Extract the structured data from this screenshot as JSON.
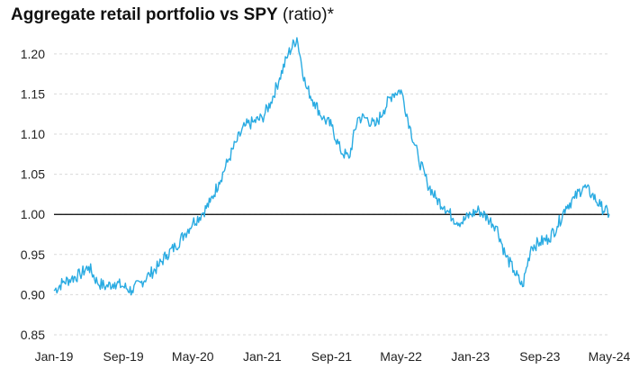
{
  "chart_data": {
    "type": "line",
    "title_bold": "Aggregate retail portfolio vs SPY",
    "title_suffix": " (ratio)*",
    "xlabel": "",
    "ylabel": "",
    "x_tick_labels": [
      "Jan-19",
      "Sep-19",
      "May-20",
      "Jan-21",
      "Sep-21",
      "May-22",
      "Jan-23",
      "Sep-23",
      "May-24"
    ],
    "y_tick_labels": [
      "0.85",
      "0.90",
      "0.95",
      "1.00",
      "1.05",
      "1.10",
      "1.15",
      "1.20"
    ],
    "y_ticks": [
      0.85,
      0.9,
      0.95,
      1.0,
      1.05,
      1.1,
      1.15,
      1.2
    ],
    "ylim": [
      0.85,
      1.22
    ],
    "x_range_months": [
      0,
      64
    ],
    "grid": true,
    "reference_line": 1.0,
    "series": [
      {
        "name": "Aggregate retail portfolio vs SPY",
        "color": "#29abe2",
        "x_months": [
          0,
          1,
          2,
          3,
          4,
          5,
          6,
          7,
          8,
          9,
          10,
          11,
          12,
          13,
          14,
          15,
          16,
          17,
          18,
          19,
          20,
          21,
          22,
          23,
          24,
          25,
          26,
          27,
          28,
          29,
          30,
          31,
          32,
          33,
          34,
          35,
          36,
          37,
          38,
          39,
          40,
          41,
          42,
          43,
          44,
          45,
          46,
          47,
          48,
          49,
          50,
          51,
          52,
          53,
          54,
          55,
          56,
          57,
          58,
          59,
          60,
          61,
          62,
          63,
          64
        ],
        "values": [
          0.905,
          0.915,
          0.92,
          0.925,
          0.935,
          0.915,
          0.91,
          0.915,
          0.91,
          0.905,
          0.915,
          0.925,
          0.935,
          0.95,
          0.96,
          0.975,
          0.99,
          1.0,
          1.015,
          1.04,
          1.065,
          1.09,
          1.11,
          1.115,
          1.12,
          1.14,
          1.17,
          1.2,
          1.22,
          1.16,
          1.14,
          1.12,
          1.11,
          1.08,
          1.07,
          1.12,
          1.12,
          1.11,
          1.13,
          1.15,
          1.155,
          1.11,
          1.07,
          1.04,
          1.02,
          1.01,
          0.995,
          0.99,
          1.0,
          1.005,
          0.995,
          0.985,
          0.95,
          0.93,
          0.91,
          0.96,
          0.965,
          0.97,
          0.985,
          1.01,
          1.02,
          1.035,
          1.025,
          1.01,
          1.0
        ]
      }
    ]
  }
}
